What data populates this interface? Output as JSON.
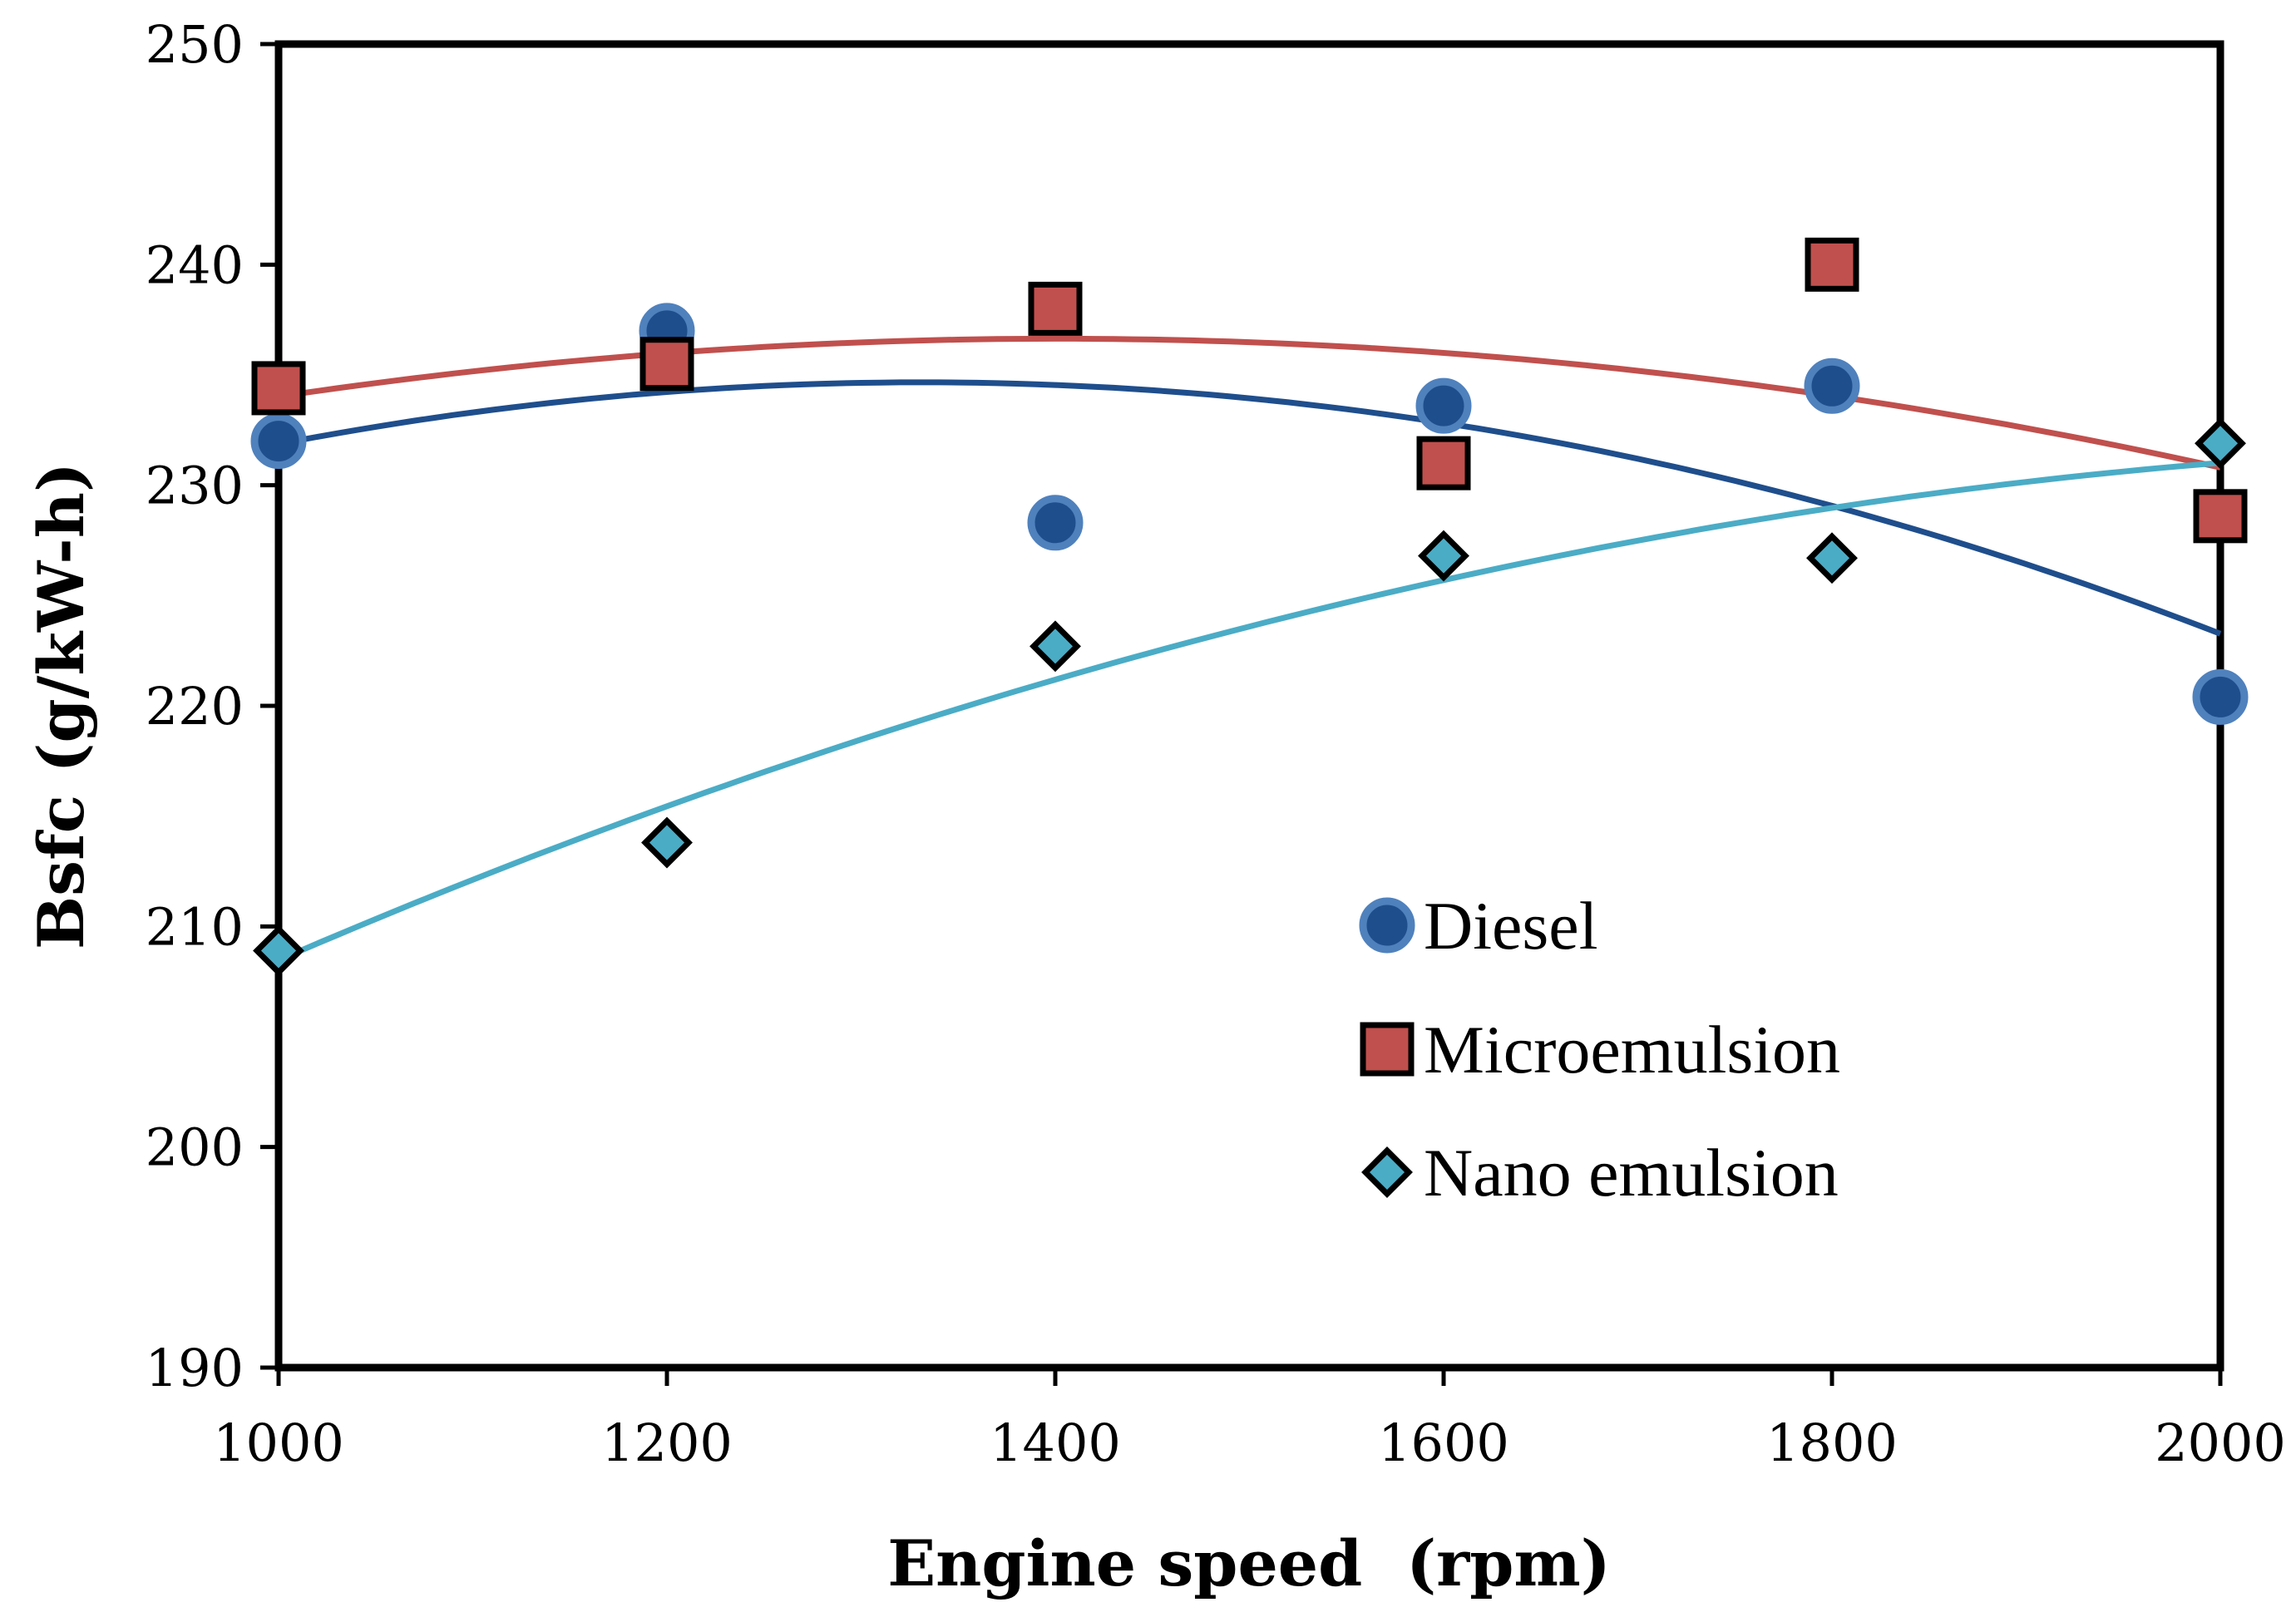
{
  "chart_data": {
    "type": "scatter",
    "title": "",
    "xlabel": "Engine speed  (rpm)",
    "ylabel": "Bsfc (g/kW-h)",
    "xlim": [
      1000,
      2000
    ],
    "ylim": [
      190,
      250
    ],
    "x_ticks": [
      1000,
      1200,
      1400,
      1600,
      1800,
      2000
    ],
    "y_ticks": [
      190,
      200,
      210,
      220,
      230,
      240,
      250
    ],
    "grid": false,
    "legend_position": "right-center",
    "trendline": "polynomial-order-2",
    "series": [
      {
        "name": "Diesel",
        "marker": "circle",
        "color": "#1f4e8c",
        "edge_color": "#4f81bd",
        "x": [
          1000,
          1200,
          1400,
          1600,
          1800,
          2000
        ],
        "y": [
          232,
          237,
          228.3,
          233.6,
          234.5,
          220.4
        ]
      },
      {
        "name": "Microemulsion",
        "marker": "square",
        "color": "#c0504d",
        "edge_color": "#000000",
        "x": [
          1000,
          1200,
          1400,
          1600,
          1800,
          2000
        ],
        "y": [
          234.4,
          235.5,
          238,
          231,
          240,
          228.6
        ]
      },
      {
        "name": "Nano emulsion",
        "marker": "diamond",
        "color": "#4bacc6",
        "edge_color": "#000000",
        "x": [
          1000,
          1200,
          1400,
          1600,
          1800,
          2000
        ],
        "y": [
          208.9,
          213.8,
          222.7,
          226.8,
          226.7,
          231.9
        ]
      }
    ]
  }
}
